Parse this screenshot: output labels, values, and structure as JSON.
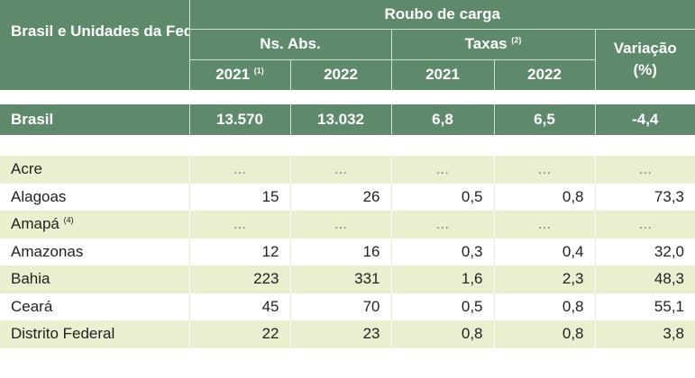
{
  "header": {
    "region_label": "Brasil e Unidades da Federação",
    "group_title": "Roubo de carga",
    "abs_label": "Ns. Abs.",
    "rates_label": "Taxas",
    "rates_note": "(2)",
    "variation_label": "Variação",
    "variation_unit": "(%)",
    "year_2021_abs": "2021",
    "year_2021_abs_note": "(1)",
    "year_2022_abs": "2022",
    "year_2021_rate": "2021",
    "year_2022_rate": "2022"
  },
  "brasil": {
    "name": "Brasil",
    "abs_2021": "13.570",
    "abs_2022": "13.032",
    "rate_2021": "6,8",
    "rate_2022": "6,5",
    "variation": "-4,4"
  },
  "rows": [
    {
      "name": "Acre",
      "note": "",
      "abs_2021": "...",
      "abs_2022": "...",
      "rate_2021": "...",
      "rate_2022": "...",
      "variation": "..."
    },
    {
      "name": "Alagoas",
      "note": "",
      "abs_2021": "15",
      "abs_2022": "26",
      "rate_2021": "0,5",
      "rate_2022": "0,8",
      "variation": "73,3"
    },
    {
      "name": "Amapá",
      "note": "(4)",
      "abs_2021": "...",
      "abs_2022": "...",
      "rate_2021": "...",
      "rate_2022": "...",
      "variation": "..."
    },
    {
      "name": "Amazonas",
      "note": "",
      "abs_2021": "12",
      "abs_2022": "16",
      "rate_2021": "0,3",
      "rate_2022": "0,4",
      "variation": "32,0"
    },
    {
      "name": "Bahia",
      "note": "",
      "abs_2021": "223",
      "abs_2022": "331",
      "rate_2021": "1,6",
      "rate_2022": "2,3",
      "variation": "48,3"
    },
    {
      "name": "Ceará",
      "note": "",
      "abs_2021": "45",
      "abs_2022": "70",
      "rate_2021": "0,5",
      "rate_2022": "0,8",
      "variation": "55,1"
    },
    {
      "name": "Distrito Federal",
      "note": "",
      "abs_2021": "22",
      "abs_2022": "23",
      "rate_2021": "0,8",
      "rate_2022": "0,8",
      "variation": "3,8"
    }
  ]
}
